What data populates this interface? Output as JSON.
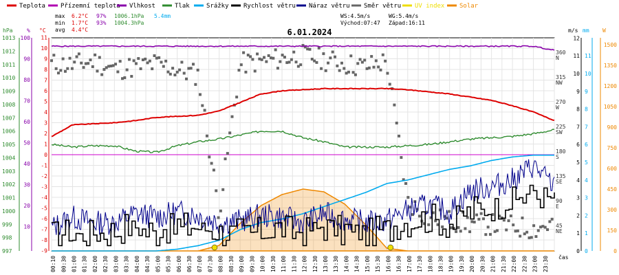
{
  "chart_data": {
    "type": "line",
    "title": "6.01.2024",
    "legend": [
      {
        "name": "Teplota",
        "color": "#dd0000"
      },
      {
        "name": "Přízemní teplota",
        "color": "#b000b0"
      },
      {
        "name": "Vlhkost",
        "color": "#8800aa"
      },
      {
        "name": "Tlak",
        "color": "#2e8b2e"
      },
      {
        "name": "Srážky",
        "color": "#00aaee"
      },
      {
        "name": "Rychlost větru",
        "color": "#000000"
      },
      {
        "name": "Náraz větru",
        "color": "#00008b"
      },
      {
        "name": "Směr větru",
        "color": "#666666"
      },
      {
        "name": "UV index",
        "color": "#eedd00"
      },
      {
        "name": "Solar",
        "color": "#ee8800"
      }
    ],
    "stats": {
      "max": {
        "label": "max",
        "temp": "6.2°C",
        "hum": "97%",
        "press": "1006.1hPa",
        "rain": "5.4mm"
      },
      "min": {
        "label": "min",
        "temp": "1.7°C",
        "hum": "93%",
        "press": "1004.3hPa"
      },
      "avg": {
        "label": "avg",
        "temp": "4.4°C"
      }
    },
    "info": {
      "ws": "WS:4.5m/s",
      "wg": "WG:5.4m/s",
      "sunrise": "Východ:07:47",
      "sunset": "Západ:16:11"
    },
    "axes": {
      "hpa": {
        "unit": "hPa",
        "ticks": [
          "1013",
          "1012",
          "1011",
          "1010",
          "1009",
          "1008",
          "1007",
          "1006",
          "1005",
          "1004",
          "1003",
          "1002",
          "1001",
          "1000",
          "999",
          "998",
          "997"
        ]
      },
      "hum": {
        "unit": "%",
        "ticks": [
          "100",
          "90",
          "80",
          "70",
          "60",
          "50",
          "40",
          "30",
          "20",
          "10"
        ]
      },
      "temp": {
        "unit": "°C",
        "ticks": [
          "11",
          "10",
          "9",
          "8",
          "7",
          "6",
          "5",
          "4",
          "3",
          "2",
          "1",
          "0",
          "-1",
          "-2",
          "-3",
          "-4",
          "-5",
          "-6",
          "-7",
          "-8",
          "-9"
        ]
      },
      "ms": {
        "unit": "m/s",
        "ticks": [
          "12",
          "11",
          "10",
          "9",
          "8",
          "7",
          "6",
          "5",
          "4",
          "3",
          "2",
          "1",
          "0"
        ]
      },
      "dir": {
        "ticks": [
          "360",
          "N",
          "315",
          "NW",
          "270",
          "W",
          "225",
          "SW",
          "180",
          "S",
          "135",
          "SE",
          "90",
          "E",
          "45",
          "NE"
        ]
      },
      "mm": {
        "unit": "mm",
        "ticks": [
          "11",
          "10",
          "9",
          "8",
          "7",
          "6",
          "5",
          "4",
          "3",
          "2",
          "1",
          "0"
        ]
      },
      "w": {
        "unit": "W",
        "ticks": [
          "1500",
          "1350",
          "1200",
          "1050",
          "900",
          "750",
          "600",
          "450",
          "300",
          "150",
          "0"
        ]
      },
      "x_unit": "čas",
      "x_ticks": [
        "00:10",
        "00:30",
        "01:00",
        "01:30",
        "02:00",
        "02:30",
        "03:00",
        "03:30",
        "04:00",
        "04:30",
        "05:00",
        "05:30",
        "06:00",
        "06:30",
        "07:00",
        "07:30",
        "08:00",
        "08:30",
        "09:00",
        "09:30",
        "10:00",
        "10:30",
        "11:00",
        "11:30",
        "12:00",
        "12:30",
        "13:00",
        "13:30",
        "14:00",
        "14:30",
        "15:00",
        "15:30",
        "16:00",
        "16:30",
        "17:00",
        "17:30",
        "18:00",
        "18:30",
        "19:00",
        "19:30",
        "20:00",
        "20:30",
        "21:00",
        "21:30",
        "22:00",
        "22:30",
        "23:00",
        "23:30"
      ]
    },
    "hours": [
      0,
      1,
      2,
      3,
      4,
      5,
      6,
      7,
      8,
      9,
      10,
      11,
      12,
      13,
      14,
      15,
      16,
      17,
      18,
      19,
      20,
      21,
      22,
      23,
      24
    ],
    "series": [
      {
        "name": "Teplota",
        "unit": "°C",
        "values": [
          1.7,
          2.8,
          2.9,
          3.0,
          3.2,
          3.5,
          3.6,
          3.7,
          4.1,
          4.9,
          5.7,
          6.0,
          6.1,
          6.2,
          6.2,
          6.2,
          6.2,
          6.1,
          5.9,
          5.7,
          5.4,
          5.1,
          4.6,
          4.0,
          3.2
        ]
      },
      {
        "name": "Vlhkost",
        "unit": "%",
        "values": [
          96,
          96,
          96,
          96,
          96,
          96,
          96,
          96,
          96,
          96,
          96,
          96,
          96,
          96,
          96,
          96,
          96,
          96,
          96,
          96,
          96,
          96,
          96,
          96,
          94
        ]
      },
      {
        "name": "Tlak",
        "unit": "hPa",
        "values": [
          1005.0,
          1004.8,
          1004.9,
          1004.9,
          1004.5,
          1004.4,
          1004.9,
          1005.2,
          1005.4,
          1005.7,
          1006.0,
          1006.0,
          1005.5,
          1005.2,
          1004.8,
          1004.8,
          1004.8,
          1004.9,
          1005.0,
          1005.2,
          1005.4,
          1005.5,
          1005.6,
          1005.8,
          1006.1
        ]
      },
      {
        "name": "Srážky",
        "unit": "mm",
        "values": [
          0,
          0,
          0,
          0,
          0,
          0,
          0.1,
          0.3,
          0.6,
          1.2,
          1.6,
          1.8,
          2.1,
          2.5,
          2.9,
          3.3,
          3.8,
          4.0,
          4.3,
          4.6,
          4.8,
          5.1,
          5.3,
          5.4,
          5.4
        ]
      },
      {
        "name": "Rychlost větru",
        "unit": "m/s",
        "values": [
          0.8,
          1.0,
          0.9,
          1.2,
          1.3,
          1.1,
          1.4,
          1.2,
          1.0,
          1.0,
          1.1,
          1.2,
          1.0,
          1.4,
          1.1,
          1.0,
          1.3,
          1.6,
          1.9,
          1.5,
          2.2,
          2.5,
          2.8,
          3.4,
          2.9
        ]
      },
      {
        "name": "Náraz větru",
        "unit": "m/s",
        "values": [
          1.3,
          1.9,
          1.6,
          1.6,
          2.1,
          1.9,
          2.2,
          2.0,
          1.6,
          1.7,
          2.0,
          1.9,
          1.6,
          2.1,
          1.8,
          1.6,
          1.7,
          2.3,
          2.6,
          2.2,
          3.4,
          3.6,
          4.0,
          4.8,
          3.6
        ]
      },
      {
        "name": "Solar",
        "unit": "W",
        "values": [
          0,
          0,
          0,
          0,
          0,
          0,
          0,
          0,
          40,
          200,
          330,
          410,
          450,
          430,
          340,
          190,
          20,
          0,
          0,
          0,
          0,
          0,
          0,
          0,
          0
        ]
      }
    ],
    "wind_dir_deg": [
      340,
      338,
      345,
      330,
      335,
      340,
      330,
      320,
      70,
      340,
      345,
      350,
      355,
      348,
      340,
      335,
      345,
      90,
      60,
      55,
      50,
      48,
      45,
      40,
      50
    ],
    "xlim": [
      0,
      24
    ]
  }
}
